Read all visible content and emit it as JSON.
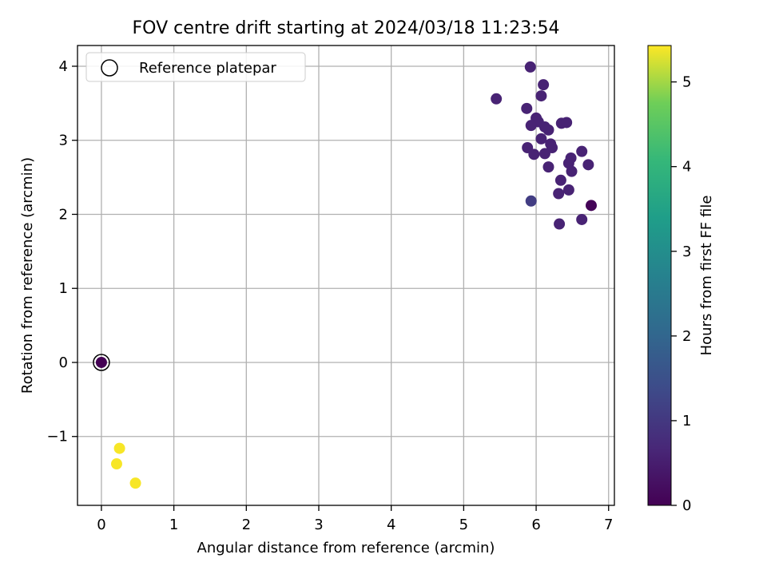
{
  "chart_data": {
    "type": "scatter",
    "title": "FOV centre drift starting at 2024/03/18 11:23:54",
    "xlabel": "Angular distance from reference (arcmin)",
    "ylabel": "Rotation from reference (arcmin)",
    "xlim": [
      -0.33,
      7.08
    ],
    "ylim": [
      -1.93,
      4.28
    ],
    "xticks": [
      "0",
      "1",
      "2",
      "3",
      "4",
      "5",
      "6",
      "7"
    ],
    "yticks": [
      "−1",
      "0",
      "1",
      "2",
      "3",
      "4"
    ],
    "grid": true,
    "legend": {
      "placement": "top-left",
      "entries": [
        "Reference platepar"
      ]
    },
    "reference_point": {
      "x": 0,
      "y": 0
    },
    "colorbar": {
      "label": "Hours from first FF file",
      "min": 0,
      "max": 5.43,
      "ticks": [
        "0",
        "1",
        "2",
        "3",
        "4",
        "5"
      ],
      "colormap": "viridis"
    },
    "points": [
      {
        "x": 0.0,
        "y": 0.0,
        "c": 0.0
      },
      {
        "x": 5.92,
        "y": 3.99,
        "c": 0.6
      },
      {
        "x": 6.1,
        "y": 3.75,
        "c": 0.6
      },
      {
        "x": 6.07,
        "y": 3.6,
        "c": 0.6
      },
      {
        "x": 5.45,
        "y": 3.56,
        "c": 0.6
      },
      {
        "x": 5.87,
        "y": 3.43,
        "c": 0.6
      },
      {
        "x": 6.0,
        "y": 3.3,
        "c": 0.6
      },
      {
        "x": 6.03,
        "y": 3.25,
        "c": 0.6
      },
      {
        "x": 5.93,
        "y": 3.2,
        "c": 0.6
      },
      {
        "x": 6.12,
        "y": 3.18,
        "c": 0.6
      },
      {
        "x": 6.17,
        "y": 3.14,
        "c": 0.6
      },
      {
        "x": 6.35,
        "y": 3.23,
        "c": 0.6
      },
      {
        "x": 6.42,
        "y": 3.24,
        "c": 0.6
      },
      {
        "x": 6.07,
        "y": 3.02,
        "c": 0.6
      },
      {
        "x": 6.2,
        "y": 2.95,
        "c": 0.6
      },
      {
        "x": 6.22,
        "y": 2.9,
        "c": 0.6
      },
      {
        "x": 5.88,
        "y": 2.9,
        "c": 0.6
      },
      {
        "x": 5.97,
        "y": 2.81,
        "c": 0.6
      },
      {
        "x": 6.12,
        "y": 2.82,
        "c": 0.6
      },
      {
        "x": 6.63,
        "y": 2.85,
        "c": 0.6
      },
      {
        "x": 6.48,
        "y": 2.76,
        "c": 0.6
      },
      {
        "x": 6.45,
        "y": 2.69,
        "c": 0.6
      },
      {
        "x": 6.72,
        "y": 2.67,
        "c": 0.6
      },
      {
        "x": 6.17,
        "y": 2.64,
        "c": 0.6
      },
      {
        "x": 6.49,
        "y": 2.58,
        "c": 0.6
      },
      {
        "x": 6.34,
        "y": 2.46,
        "c": 0.6
      },
      {
        "x": 6.45,
        "y": 2.33,
        "c": 0.6
      },
      {
        "x": 6.31,
        "y": 2.28,
        "c": 0.6
      },
      {
        "x": 5.93,
        "y": 2.18,
        "c": 1.1
      },
      {
        "x": 6.76,
        "y": 2.12,
        "c": 0.05
      },
      {
        "x": 6.63,
        "y": 1.93,
        "c": 0.6
      },
      {
        "x": 6.32,
        "y": 1.87,
        "c": 0.6
      },
      {
        "x": 0.25,
        "y": -1.16,
        "c": 5.4
      },
      {
        "x": 0.21,
        "y": -1.37,
        "c": 5.4
      },
      {
        "x": 0.47,
        "y": -1.63,
        "c": 5.4
      }
    ]
  }
}
